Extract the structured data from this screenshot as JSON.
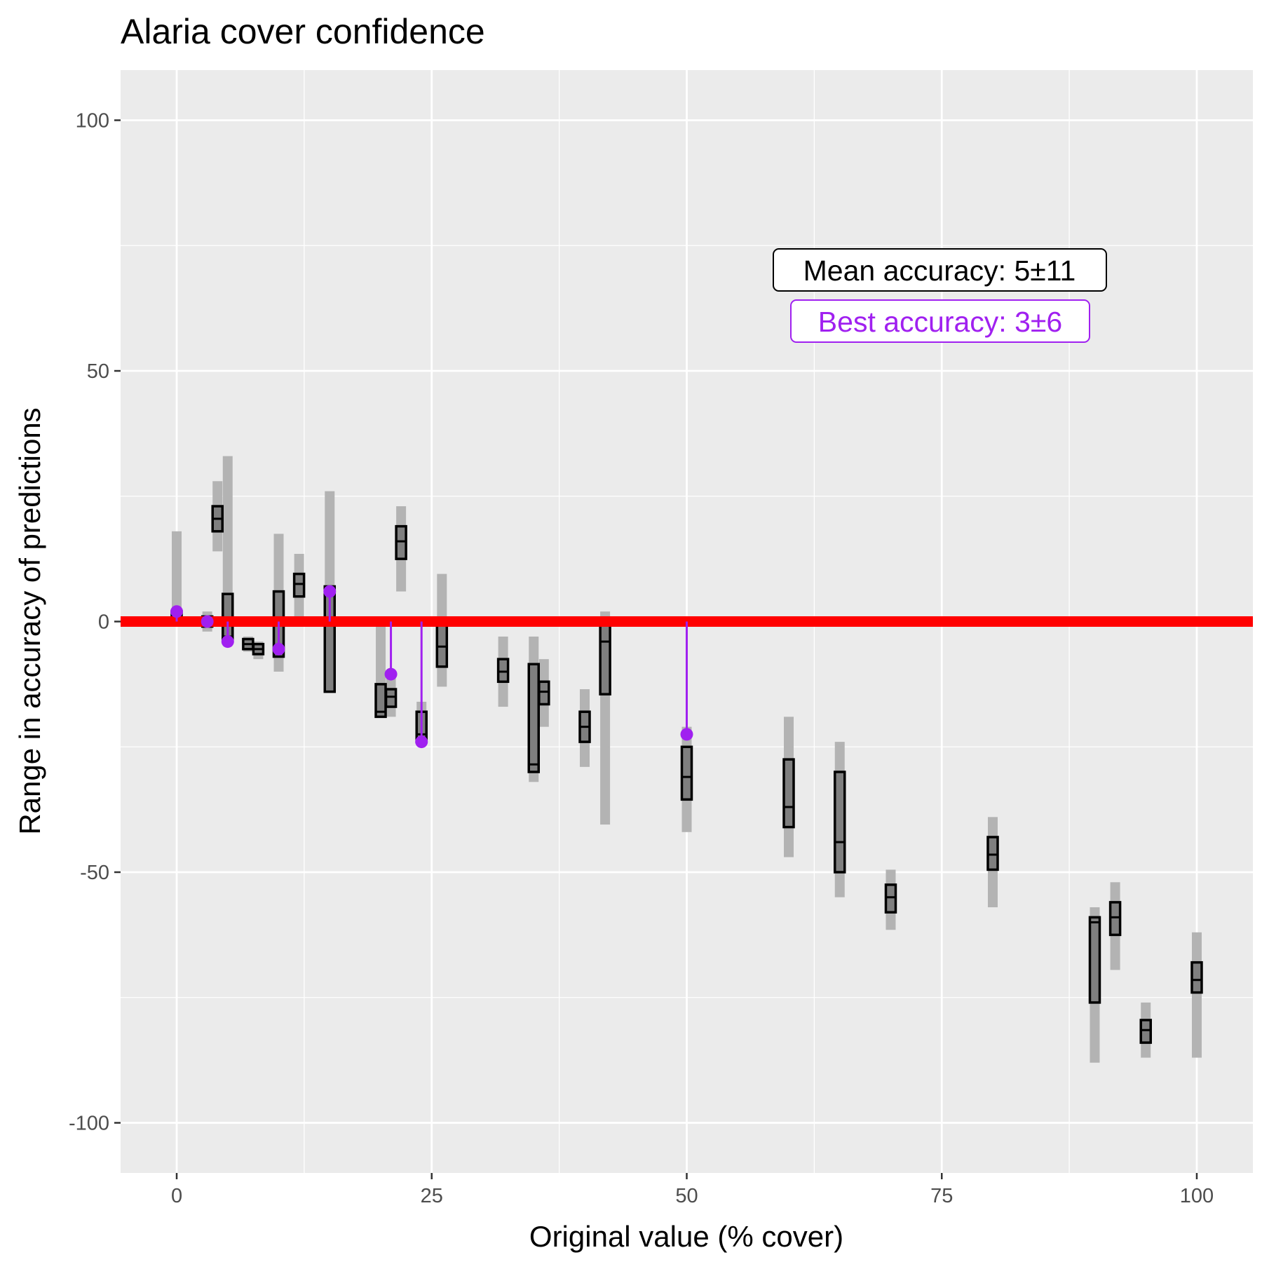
{
  "chart_data": {
    "type": "boxplot",
    "title": "Alaria cover confidence",
    "xlabel": "Original value (% cover)",
    "ylabel": "Range in accuracy of predictions",
    "xlim": [
      -5.5,
      105.5
    ],
    "ylim": [
      -110,
      110
    ],
    "x_ticks": [
      0,
      25,
      50,
      75,
      100
    ],
    "y_ticks": [
      -100,
      -50,
      0,
      50,
      100
    ],
    "x_tick_labels": [
      "0",
      "25",
      "50",
      "75",
      "100"
    ],
    "y_tick_labels": [
      "-100",
      "-50",
      "0",
      "50",
      "100"
    ],
    "grid": true,
    "reference_line": {
      "y": 0,
      "color": "#ff0000"
    },
    "colors": {
      "panel": "#ebebeb",
      "grid": "#ffffff",
      "whisker": "#b3b3b3",
      "box_fill": "#7f7f7f",
      "box_stroke": "#000000",
      "best": "#a020f0"
    },
    "boxes": [
      {
        "x": 0,
        "whisker": [
          0,
          18
        ],
        "box": [
          0,
          2
        ],
        "median": 1
      },
      {
        "x": 3,
        "whisker": [
          -2,
          2
        ],
        "box": [
          -1,
          1
        ],
        "median": 0
      },
      {
        "x": 4,
        "whisker": [
          14,
          28
        ],
        "box": [
          18,
          23
        ],
        "median": 20.5
      },
      {
        "x": 5,
        "whisker": [
          -4,
          33
        ],
        "box": [
          -4,
          5.5
        ],
        "median": -3
      },
      {
        "x": 7,
        "whisker": [
          -6,
          -3
        ],
        "box": [
          -5.5,
          -3.5
        ],
        "median": -4.5
      },
      {
        "x": 8,
        "whisker": [
          -7.5,
          -4
        ],
        "box": [
          -6.5,
          -4.5
        ],
        "median": -5.5
      },
      {
        "x": 10,
        "whisker": [
          -10,
          17.5
        ],
        "box": [
          -7,
          6
        ],
        "median": -6
      },
      {
        "x": 12,
        "whisker": [
          1,
          13.5
        ],
        "box": [
          5,
          9.5
        ],
        "median": 7.5
      },
      {
        "x": 15,
        "whisker": [
          -14,
          26
        ],
        "box": [
          -14,
          7
        ],
        "median": 0
      },
      {
        "x": 20,
        "whisker": [
          -19,
          0
        ],
        "box": [
          -19,
          -12.5
        ],
        "median": -18
      },
      {
        "x": 21,
        "whisker": [
          -19,
          -11
        ],
        "box": [
          -17,
          -13.5
        ],
        "median": -15
      },
      {
        "x": 22,
        "whisker": [
          6,
          23
        ],
        "box": [
          12.5,
          19
        ],
        "median": 16
      },
      {
        "x": 24,
        "whisker": [
          -24,
          -16
        ],
        "box": [
          -24,
          -18
        ],
        "median": -22.5
      },
      {
        "x": 26,
        "whisker": [
          -13,
          9.5
        ],
        "box": [
          -9,
          0
        ],
        "median": -5
      },
      {
        "x": 32,
        "whisker": [
          -17,
          -3
        ],
        "box": [
          -12,
          -7.5
        ],
        "median": -10
      },
      {
        "x": 35,
        "whisker": [
          -32,
          -3
        ],
        "box": [
          -30,
          -8.5
        ],
        "median": -28.5
      },
      {
        "x": 36,
        "whisker": [
          -21,
          -7.5
        ],
        "box": [
          -16.5,
          -12
        ],
        "median": -14
      },
      {
        "x": 40,
        "whisker": [
          -29,
          -13.5
        ],
        "box": [
          -24,
          -18
        ],
        "median": -21
      },
      {
        "x": 42,
        "whisker": [
          -40.5,
          2
        ],
        "box": [
          -14.5,
          0
        ],
        "median": -4
      },
      {
        "x": 50,
        "whisker": [
          -42,
          -21
        ],
        "box": [
          -35.5,
          -25
        ],
        "median": -31
      },
      {
        "x": 60,
        "whisker": [
          -47,
          -19
        ],
        "box": [
          -41,
          -27.5
        ],
        "median": -37
      },
      {
        "x": 65,
        "whisker": [
          -55,
          -24
        ],
        "box": [
          -50,
          -30
        ],
        "median": -44
      },
      {
        "x": 70,
        "whisker": [
          -61.5,
          -49.5
        ],
        "box": [
          -58,
          -52.5
        ],
        "median": -55
      },
      {
        "x": 80,
        "whisker": [
          -57,
          -39
        ],
        "box": [
          -49.5,
          -43
        ],
        "median": -46.5
      },
      {
        "x": 90,
        "whisker": [
          -88,
          -57
        ],
        "box": [
          -76,
          -59
        ],
        "median": -60
      },
      {
        "x": 92,
        "whisker": [
          -69.5,
          -52
        ],
        "box": [
          -62.5,
          -56
        ],
        "median": -59
      },
      {
        "x": 95,
        "whisker": [
          -87,
          -76
        ],
        "box": [
          -84,
          -79.5
        ],
        "median": -81.5
      },
      {
        "x": 100,
        "whisker": [
          -87,
          -62
        ],
        "box": [
          -74,
          -68
        ],
        "median": -71.5
      }
    ],
    "best_points": [
      {
        "x": 0,
        "y": 2
      },
      {
        "x": 3,
        "y": 0
      },
      {
        "x": 5,
        "y": -4
      },
      {
        "x": 10,
        "y": -5.5
      },
      {
        "x": 15,
        "y": 6
      },
      {
        "x": 21,
        "y": -10.5
      },
      {
        "x": 24,
        "y": -24
      },
      {
        "x": 50,
        "y": -22.5
      }
    ],
    "annotations": {
      "mean": "Mean accuracy: 5±11",
      "best": "Best accuracy: 3±6"
    }
  }
}
